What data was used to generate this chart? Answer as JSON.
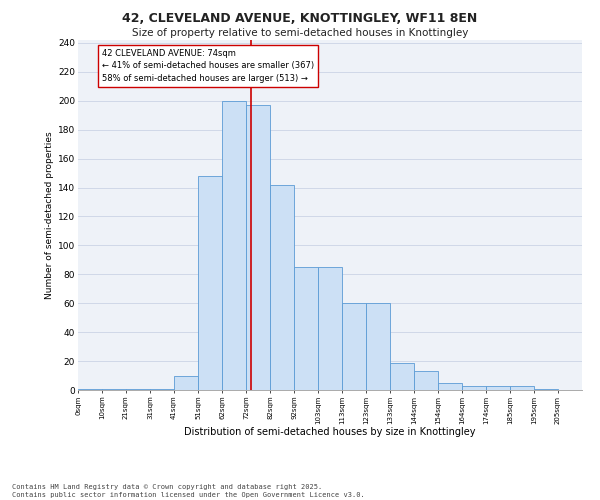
{
  "title1": "42, CLEVELAND AVENUE, KNOTTINGLEY, WF11 8EN",
  "title2": "Size of property relative to semi-detached houses in Knottingley",
  "xlabel": "Distribution of semi-detached houses by size in Knottingley",
  "ylabel": "Number of semi-detached properties",
  "bins": [
    "0sqm",
    "10sqm",
    "21sqm",
    "31sqm",
    "41sqm",
    "51sqm",
    "62sqm",
    "72sqm",
    "82sqm",
    "92sqm",
    "103sqm",
    "113sqm",
    "123sqm",
    "133sqm",
    "144sqm",
    "154sqm",
    "164sqm",
    "174sqm",
    "185sqm",
    "195sqm",
    "205sqm"
  ],
  "values": [
    1,
    1,
    1,
    1,
    10,
    148,
    200,
    197,
    142,
    85,
    85,
    60,
    60,
    19,
    13,
    5,
    3,
    3,
    3,
    1,
    0
  ],
  "bar_color": "#cce0f5",
  "bar_edge_color": "#5b9bd5",
  "grid_color": "#d0d8e8",
  "bg_color": "#eef2f8",
  "vline_color": "#cc0000",
  "annotation_text": "42 CLEVELAND AVENUE: 74sqm\n← 41% of semi-detached houses are smaller (367)\n58% of semi-detached houses are larger (513) →",
  "annotation_box_color": "#ffffff",
  "annotation_box_edge": "#cc0000",
  "footnote": "Contains HM Land Registry data © Crown copyright and database right 2025.\nContains public sector information licensed under the Open Government Licence v3.0.",
  "ylim": [
    0,
    242
  ],
  "yticks": [
    0,
    20,
    40,
    60,
    80,
    100,
    120,
    140,
    160,
    180,
    200,
    220,
    240
  ],
  "title1_fontsize": 9,
  "title2_fontsize": 7.5,
  "ylabel_fontsize": 6.5,
  "xlabel_fontsize": 7,
  "ytick_fontsize": 6.5,
  "xtick_fontsize": 5,
  "annotation_fontsize": 6,
  "footnote_fontsize": 5
}
